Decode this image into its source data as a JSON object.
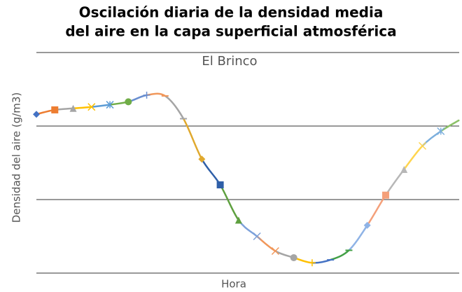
{
  "chart_data": {
    "type": "line",
    "title": "Oscilación diaria de la densidad media",
    "title_line2": "del aire en la capa superficial atmosférica",
    "subtitle": "El Brinco",
    "y_label": "Densidad del aire (g/m3)",
    "x_label": "Hora",
    "values": [
      2.16,
      2.22,
      2.24,
      2.26,
      2.29,
      2.33,
      2.42,
      2.41,
      2.1,
      1.55,
      1.2,
      0.72,
      0.5,
      0.3,
      0.21,
      0.14,
      0.18,
      0.31,
      0.65,
      1.06,
      1.41,
      1.73,
      1.93,
      2.08
    ],
    "colors": [
      "#4472c4",
      "#ed7d31",
      "#a5a5a5",
      "#ffc000",
      "#5b9bd5",
      "#70ad47",
      "#698ed0",
      "#f1975a",
      "#a5a5a5",
      "#e0a92e",
      "#2f5fa8",
      "#5fa040",
      "#7da1da",
      "#f1975a",
      "#a5a5a5",
      "#ffc000",
      "#4472c4",
      "#43a047",
      "#8fb3e6",
      "#f4a07a",
      "#b7b7b7",
      "#ffd54f",
      "#7cafdd",
      "#8cc168"
    ],
    "markers": [
      "diamond",
      "square",
      "triangle",
      "x",
      "star",
      "circle",
      "plus",
      "dash",
      "dash",
      "diamond",
      "square",
      "triangle",
      "x",
      "x",
      "circle",
      "plus",
      "dash",
      "dash",
      "diamond",
      "square",
      "triangle",
      "x",
      "star",
      "none"
    ],
    "ylim": [
      0,
      3
    ],
    "yticks": [
      0,
      1,
      2,
      3
    ],
    "grid": true
  }
}
